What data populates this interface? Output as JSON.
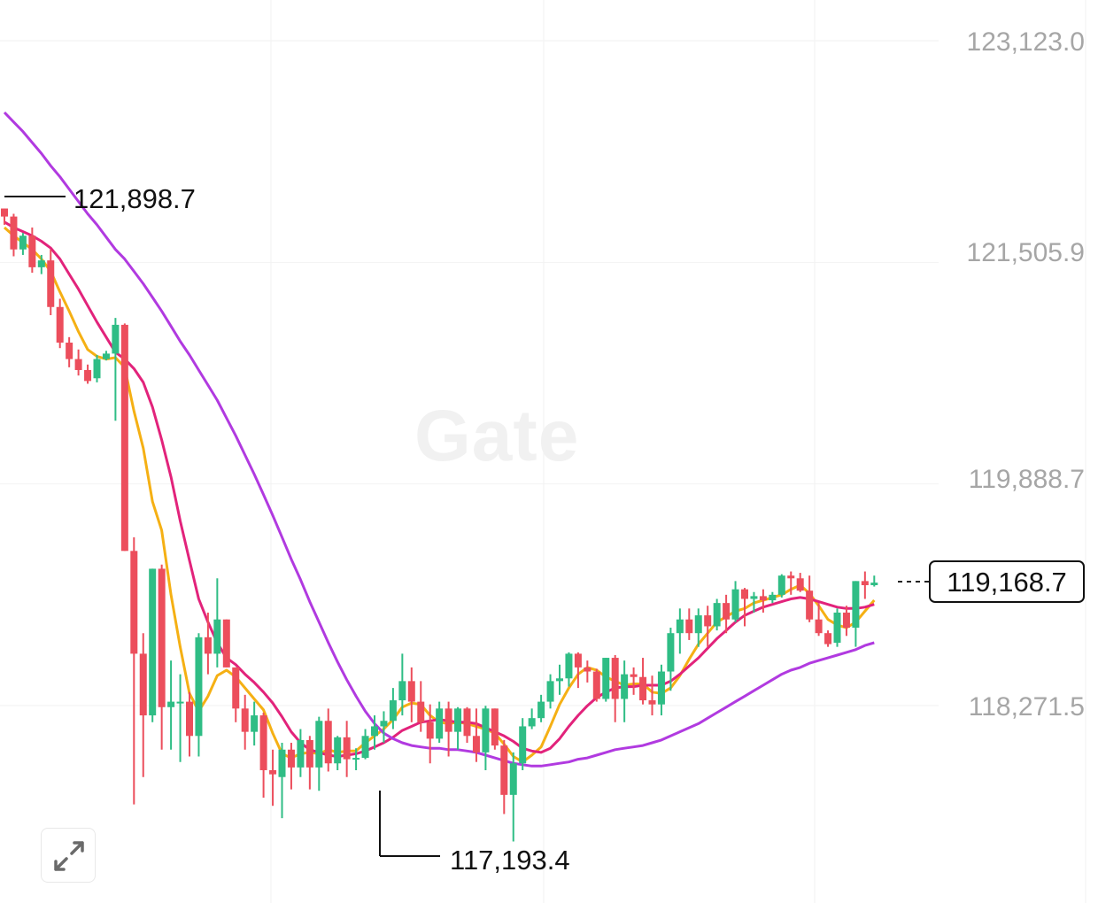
{
  "watermark": "Gate",
  "chart_data": {
    "type": "candlestick",
    "y_ticks": [
      {
        "value": 123123.0,
        "label": "123,123.0"
      },
      {
        "value": 121505.9,
        "label": "121,505.9"
      },
      {
        "value": 119888.7,
        "label": "119,888.7"
      },
      {
        "value": 118271.5,
        "label": "118,271.5"
      }
    ],
    "ylim": [
      116000,
      123300
    ],
    "grid": true,
    "annotations": {
      "high": {
        "value": 121898.7,
        "label": "121,898.7"
      },
      "low": {
        "value": 117193.4,
        "label": "117,193.4"
      },
      "last_price": {
        "value": 119168.7,
        "label": "119,168.7"
      }
    },
    "candles": [
      [
        121898.7,
        121898.7,
        121780,
        121840
      ],
      [
        121840,
        121860,
        121550,
        121600
      ],
      [
        121600,
        121720,
        121560,
        121700
      ],
      [
        121700,
        121760,
        121430,
        121470
      ],
      [
        121470,
        121560,
        121420,
        121520
      ],
      [
        121520,
        121600,
        121120,
        121180
      ],
      [
        121180,
        121240,
        120880,
        120920
      ],
      [
        120920,
        120960,
        120740,
        120800
      ],
      [
        120800,
        120870,
        120680,
        120720
      ],
      [
        120720,
        120760,
        120620,
        120640
      ],
      [
        120660,
        120830,
        120630,
        120800
      ],
      [
        120800,
        120860,
        120790,
        120840
      ],
      [
        120840,
        121100,
        120350,
        121050
      ],
      [
        121050,
        121060,
        119400,
        119400
      ],
      [
        119400,
        119500,
        117550,
        118650
      ],
      [
        118650,
        118800,
        117750,
        118200
      ],
      [
        118200,
        119270,
        118150,
        119270
      ],
      [
        119270,
        119300,
        117950,
        118260
      ],
      [
        118260,
        118600,
        117950,
        118300
      ],
      [
        118300,
        118500,
        117860,
        118300
      ],
      [
        118300,
        118370,
        117900,
        118050
      ],
      [
        118050,
        118800,
        117900,
        118770
      ],
      [
        118770,
        118950,
        118500,
        118650
      ],
      [
        118650,
        119200,
        118550,
        118900
      ],
      [
        118900,
        118900,
        118550,
        118550
      ],
      [
        118550,
        118550,
        118150,
        118250
      ],
      [
        118250,
        118350,
        117950,
        118080
      ],
      [
        118080,
        118300,
        117980,
        118200
      ],
      [
        118200,
        118220,
        117600,
        117800
      ],
      [
        117800,
        117950,
        117540,
        117770
      ],
      [
        117750,
        118000,
        117450,
        117950
      ],
      [
        117950,
        118000,
        117660,
        117820
      ],
      [
        117820,
        118100,
        117750,
        118020
      ],
      [
        118020,
        118050,
        117660,
        117820
      ],
      [
        117820,
        118190,
        117650,
        118160
      ],
      [
        118160,
        118250,
        117790,
        117850
      ],
      [
        117850,
        118050,
        117800,
        118040
      ],
      [
        118040,
        118160,
        117750,
        117880
      ],
      [
        117880,
        117960,
        117800,
        117890
      ],
      [
        117890,
        118100,
        117880,
        118050
      ],
      [
        118050,
        118200,
        117950,
        118120
      ],
      [
        118120,
        118230,
        118000,
        118160
      ],
      [
        118160,
        118400,
        118100,
        118310
      ],
      [
        118310,
        118650,
        118200,
        118450
      ],
      [
        118450,
        118550,
        118150,
        118300
      ],
      [
        118300,
        118450,
        118080,
        118150
      ],
      [
        118150,
        118280,
        117850,
        118030
      ],
      [
        118030,
        118300,
        118000,
        118250
      ],
      [
        118250,
        118300,
        117900,
        118080
      ],
      [
        118080,
        118260,
        117950,
        118250
      ],
      [
        118250,
        118260,
        118000,
        118050
      ],
      [
        118050,
        118250,
        117860,
        117930
      ],
      [
        117930,
        118270,
        117800,
        118250
      ],
      [
        118250,
        118250,
        117950,
        117980
      ],
      [
        117980,
        118020,
        117480,
        117620
      ],
      [
        117620,
        117930,
        117280,
        117850
      ],
      [
        117850,
        118180,
        117800,
        118120
      ],
      [
        118120,
        118250,
        118100,
        118180
      ],
      [
        118180,
        118350,
        118150,
        118300
      ],
      [
        118300,
        118500,
        118250,
        118450
      ],
      [
        118450,
        118570,
        118350,
        118470
      ],
      [
        118470,
        118660,
        118410,
        118650
      ],
      [
        118650,
        118660,
        118400,
        118550
      ],
      [
        118550,
        118600,
        118440,
        118520
      ],
      [
        118520,
        118540,
        118300,
        118320
      ],
      [
        118320,
        118620,
        118300,
        118620
      ],
      [
        118620,
        118640,
        118150,
        118320
      ],
      [
        118320,
        118600,
        118150,
        118500
      ],
      [
        118500,
        118550,
        118350,
        118480
      ],
      [
        118480,
        118620,
        118280,
        118310
      ],
      [
        118310,
        118490,
        118200,
        118280
      ],
      [
        118280,
        118570,
        118200,
        118520
      ],
      [
        118520,
        118840,
        118380,
        118800
      ],
      [
        118800,
        118980,
        118650,
        118900
      ],
      [
        118900,
        118980,
        118750,
        118800
      ],
      [
        118800,
        118980,
        118700,
        118930
      ],
      [
        118930,
        119000,
        118700,
        118850
      ],
      [
        118850,
        119050,
        118820,
        119020
      ],
      [
        119020,
        119080,
        118800,
        118900
      ],
      [
        118900,
        119180,
        118880,
        119120
      ],
      [
        119120,
        119130,
        118850,
        119050
      ],
      [
        119050,
        119100,
        118950,
        119070
      ],
      [
        119070,
        119120,
        118950,
        119040
      ],
      [
        119040,
        119100,
        119020,
        119080
      ],
      [
        119080,
        119230,
        119060,
        119220
      ],
      [
        119220,
        119250,
        119080,
        119200
      ],
      [
        119200,
        119240,
        119100,
        119110
      ],
      [
        119110,
        119220,
        118880,
        118900
      ],
      [
        118900,
        119020,
        118780,
        118800
      ],
      [
        118800,
        118820,
        118700,
        118720
      ],
      [
        118730,
        118980,
        118700,
        118950
      ],
      [
        118950,
        119000,
        118780,
        118840
      ],
      [
        118840,
        119180,
        118700,
        119180
      ],
      [
        119180,
        119250,
        119050,
        119150
      ],
      [
        119150,
        119220,
        119140,
        119168.7
      ]
    ],
    "series": [
      {
        "color": "#f5b014",
        "values": [
          121760,
          121700,
          121650,
          121600,
          121530,
          121440,
          121290,
          121150,
          121000,
          120870,
          120820,
          120800,
          120810,
          120740,
          120420,
          120150,
          119760,
          119550,
          119080,
          118700,
          118360,
          118230,
          118340,
          118490,
          118530,
          118480,
          118400,
          118320,
          118240,
          118070,
          117920,
          117890,
          117920,
          117930,
          117920,
          117950,
          117930,
          117940,
          117940,
          118000,
          118050,
          118100,
          118170,
          118260,
          118290,
          118280,
          118200,
          118150,
          118140,
          118150,
          118140,
          118120,
          118100,
          118070,
          117990,
          117900,
          117860,
          117910,
          117970,
          118120,
          118280,
          118400,
          118500,
          118550,
          118530,
          118480,
          118450,
          118420,
          118430,
          118430,
          118370,
          118360,
          118400,
          118490,
          118610,
          118720,
          118800,
          118880,
          118920,
          118960,
          118980,
          119020,
          119040,
          119060,
          119080,
          119120,
          119150,
          119090,
          119000,
          118900,
          118860,
          118840,
          118880,
          118960,
          119040
        ]
      },
      {
        "color": "#e2237b",
        "values": [
          121800,
          121760,
          121730,
          121700,
          121660,
          121610,
          121530,
          121420,
          121310,
          121190,
          121070,
          120960,
          120850,
          120800,
          120730,
          120630,
          120450,
          120210,
          119940,
          119620,
          119330,
          119050,
          118880,
          118730,
          118620,
          118570,
          118500,
          118440,
          118370,
          118290,
          118190,
          118080,
          118000,
          117950,
          117930,
          117910,
          117900,
          117910,
          117920,
          117940,
          117970,
          118000,
          118040,
          118090,
          118120,
          118150,
          118160,
          118170,
          118160,
          118150,
          118150,
          118140,
          118110,
          118080,
          118050,
          118010,
          117960,
          117940,
          117930,
          117960,
          118030,
          118120,
          118200,
          118270,
          118330,
          118370,
          118400,
          118410,
          118410,
          118420,
          118420,
          118420,
          118450,
          118500,
          118560,
          118620,
          118690,
          118760,
          118820,
          118880,
          118930,
          118960,
          118990,
          119010,
          119030,
          119050,
          119060,
          119050,
          119030,
          119010,
          118990,
          118980,
          118980,
          118990,
          119010
        ]
      },
      {
        "color": "#b13ae0",
        "values": [
          122600,
          122530,
          122460,
          122380,
          122300,
          122210,
          122130,
          122040,
          121950,
          121860,
          121780,
          121690,
          121600,
          121530,
          121440,
          121350,
          121250,
          121150,
          121040,
          120930,
          120830,
          120720,
          120610,
          120500,
          120370,
          120240,
          120100,
          119960,
          119810,
          119660,
          119500,
          119340,
          119190,
          119030,
          118880,
          118730,
          118590,
          118460,
          118340,
          118230,
          118140,
          118070,
          118030,
          118000,
          117980,
          117970,
          117960,
          117960,
          117950,
          117950,
          117940,
          117930,
          117910,
          117890,
          117870,
          117850,
          117840,
          117830,
          117830,
          117840,
          117850,
          117860,
          117880,
          117890,
          117910,
          117930,
          117950,
          117960,
          117970,
          117980,
          118000,
          118020,
          118050,
          118080,
          118110,
          118140,
          118180,
          118220,
          118260,
          118300,
          118340,
          118380,
          118420,
          118460,
          118500,
          118530,
          118550,
          118580,
          118600,
          118620,
          118640,
          118660,
          118680,
          118710,
          118730
        ]
      }
    ]
  }
}
